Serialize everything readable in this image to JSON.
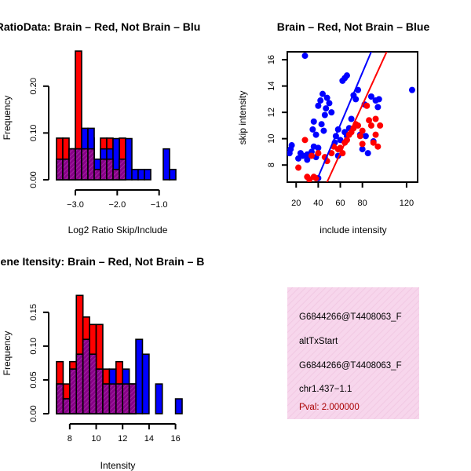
{
  "chart_data": [
    {
      "type": "bar",
      "title": "RatioData: Brain – Red, Not Brain – Blu",
      "xlabel": "Log2 Ratio Skip/Include",
      "ylabel": "Frequency",
      "xlim": [
        -3.45,
        -0.45
      ],
      "ylim": [
        0,
        0.26
      ],
      "xticks": [
        -3.0,
        -2.0,
        -1.0
      ],
      "xtick_labels": [
        "−3.0",
        "−2.0",
        "−1.0"
      ],
      "yticks": [
        0.0,
        0.1,
        0.2
      ],
      "ytick_labels": [
        "0.00",
        "0.10",
        "0.20"
      ],
      "bin_width": 0.15,
      "bin_start": -3.45,
      "series": [
        {
          "name": "Brain",
          "color": "#ff0000",
          "values": [
            0.089,
            0.089,
            0.066,
            0.275,
            0.089,
            0.089,
            0.044,
            0.089,
            0.089,
            0.022,
            0.089,
            0,
            0,
            0,
            0,
            0,
            0,
            0,
            0,
            0
          ]
        },
        {
          "name": "Not Brain",
          "color": "#0000ff",
          "values": [
            0.044,
            0.044,
            0.066,
            0.066,
            0.11,
            0.11,
            0.044,
            0.066,
            0.066,
            0.088,
            0.044,
            0.088,
            0.022,
            0.022,
            0.022,
            0,
            0,
            0.066,
            0.022,
            0
          ]
        },
        {
          "name": "overlap",
          "color": "#880088",
          "values": [
            0.044,
            0.044,
            0.066,
            0.066,
            0.066,
            0.066,
            0.022,
            0.044,
            0.044,
            0.022,
            0.044,
            0,
            0,
            0,
            0,
            0,
            0,
            0,
            0,
            0
          ]
        }
      ]
    },
    {
      "type": "scatter",
      "title": "Brain – Red, Not Brain – Blue",
      "xlabel": "include intensity",
      "ylabel": "skip intensity",
      "xlim": [
        12,
        130
      ],
      "ylim": [
        6.7,
        16.6
      ],
      "xticks": [
        20,
        40,
        60,
        80,
        120
      ],
      "xtick_labels": [
        "20",
        "40",
        "60",
        "80",
        "120"
      ],
      "yticks": [
        8,
        10,
        12,
        14,
        16
      ],
      "ytick_labels": [
        "8",
        "10",
        "12",
        "14",
        "16"
      ],
      "series": [
        {
          "name": "Not Brain",
          "color": "#0000ff",
          "points": [
            [
              28,
              16.3
            ],
            [
              14,
              8.9
            ],
            [
              16,
              9.5
            ],
            [
              15,
              9.2
            ],
            [
              22,
              8.5
            ],
            [
              24,
              8.9
            ],
            [
              26,
              8.7
            ],
            [
              30,
              8.8
            ],
            [
              30,
              8.4
            ],
            [
              32,
              8.7
            ],
            [
              34,
              9.0
            ],
            [
              35,
              10.7
            ],
            [
              36,
              9.4
            ],
            [
              36,
              11.3
            ],
            [
              38,
              8.6
            ],
            [
              38,
              10.3
            ],
            [
              40,
              9.3
            ],
            [
              40,
              7.0
            ],
            [
              40,
              12.5
            ],
            [
              42,
              12.9
            ],
            [
              43,
              11.1
            ],
            [
              44,
              13.4
            ],
            [
              45,
              10.6
            ],
            [
              46,
              11.8
            ],
            [
              47,
              12.3
            ],
            [
              48,
              13.1
            ],
            [
              50,
              12.7
            ],
            [
              52,
              12.0
            ],
            [
              55,
              9.7
            ],
            [
              56,
              10.2
            ],
            [
              58,
              8.7
            ],
            [
              58,
              10.7
            ],
            [
              60,
              9.9
            ],
            [
              62,
              14.4
            ],
            [
              64,
              14.6
            ],
            [
              64,
              10.5
            ],
            [
              66,
              14.8
            ],
            [
              66,
              10.2
            ],
            [
              68,
              10.8
            ],
            [
              70,
              11.5
            ],
            [
              72,
              13.3
            ],
            [
              74,
              13.0
            ],
            [
              76,
              13.7
            ],
            [
              78,
              10.3
            ],
            [
              80,
              9.2
            ],
            [
              82,
              12.6
            ],
            [
              83,
              10.2
            ],
            [
              85,
              8.9
            ],
            [
              88,
              13.2
            ],
            [
              90,
              9.8
            ],
            [
              92,
              12.9
            ],
            [
              94,
              12.4
            ],
            [
              95,
              13.0
            ],
            [
              125,
              13.7
            ]
          ],
          "fit": [
            [
              40,
              7.1
            ],
            [
              88,
              16.6
            ]
          ]
        },
        {
          "name": "Brain",
          "color": "#ff0000",
          "points": [
            [
              22,
              7.8
            ],
            [
              28,
              9.9
            ],
            [
              30,
              7.1
            ],
            [
              32,
              6.9
            ],
            [
              34,
              8.7
            ],
            [
              36,
              7.1
            ],
            [
              38,
              7.0
            ],
            [
              40,
              8.9
            ],
            [
              46,
              8.6
            ],
            [
              48,
              8.3
            ],
            [
              52,
              8.9
            ],
            [
              54,
              9.4
            ],
            [
              58,
              9.2
            ],
            [
              60,
              9.3
            ],
            [
              62,
              8.9
            ],
            [
              64,
              9.7
            ],
            [
              66,
              9.9
            ],
            [
              68,
              10.3
            ],
            [
              70,
              10.5
            ],
            [
              72,
              10.8
            ],
            [
              74,
              11.1
            ],
            [
              76,
              11.0
            ],
            [
              78,
              10.2
            ],
            [
              80,
              10.6
            ],
            [
              80,
              9.6
            ],
            [
              84,
              12.5
            ],
            [
              86,
              11.4
            ],
            [
              88,
              11.0
            ],
            [
              90,
              9.7
            ],
            [
              92,
              11.5
            ],
            [
              92,
              10.3
            ],
            [
              94,
              9.4
            ],
            [
              96,
              11.0
            ]
          ],
          "fit": [
            [
              48,
              6.7
            ],
            [
              102,
              16.6
            ]
          ]
        }
      ]
    },
    {
      "type": "bar",
      "title": "Gene Itensity: Brain – Red, Not Brain – B",
      "xlabel": "Intensity",
      "ylabel": "Frequency",
      "xlim": [
        7.0,
        16.5
      ],
      "ylim": [
        0,
        0.18
      ],
      "xticks": [
        8,
        10,
        12,
        14,
        16
      ],
      "xtick_labels": [
        "8",
        "10",
        "12",
        "14",
        "16"
      ],
      "yticks": [
        0.0,
        0.05,
        0.1,
        0.15
      ],
      "ytick_labels": [
        "0.00",
        "0.05",
        "0.10",
        "0.15"
      ],
      "bin_width": 0.5,
      "bin_start": 7.0,
      "series": [
        {
          "name": "Brain",
          "color": "#ff0000",
          "values": [
            0.077,
            0.044,
            0.077,
            0.175,
            0.143,
            0.132,
            0.132,
            0.066,
            0.044,
            0.077,
            0.044,
            0.044,
            0,
            0,
            0,
            0,
            0,
            0,
            0
          ]
        },
        {
          "name": "Not Brain",
          "color": "#0000ff",
          "values": [
            0.044,
            0.022,
            0.066,
            0.088,
            0.11,
            0.088,
            0.066,
            0.044,
            0.066,
            0.044,
            0.066,
            0.044,
            0.11,
            0.088,
            0,
            0.044,
            0,
            0,
            0.022
          ]
        },
        {
          "name": "overlap",
          "color": "#880088",
          "values": [
            0.044,
            0.022,
            0.066,
            0.088,
            0.11,
            0.088,
            0.066,
            0.044,
            0.044,
            0.044,
            0.044,
            0.044,
            0,
            0,
            0,
            0,
            0,
            0,
            0
          ]
        }
      ]
    }
  ],
  "info_panel": {
    "lines": [
      "G6844266@T4408063_F",
      "altTxStart",
      "G6844266@T4408063_F",
      "chr1.437−1.1"
    ],
    "pval": "Pval: 2.000000",
    "bg_color": "#f7d6ec",
    "pval_color": "#aa0000"
  }
}
